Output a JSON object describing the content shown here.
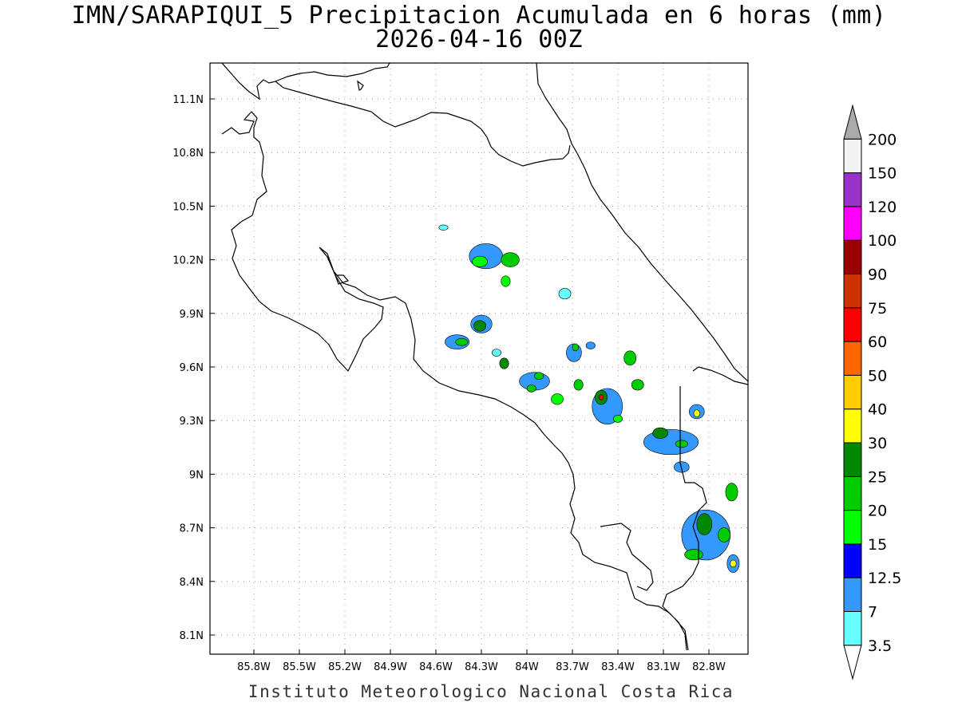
{
  "title": {
    "line1": "IMN/SARAPIQUI_5 Precipitacion Acumulada en 6 horas (mm)",
    "line2": "2026-04-16 00Z"
  },
  "map": {
    "lon_ticks": [
      {
        "value": -85.8,
        "label": "85.8W"
      },
      {
        "value": -85.5,
        "label": "85.5W"
      },
      {
        "value": -85.2,
        "label": "85.2W"
      },
      {
        "value": -84.9,
        "label": "84.9W"
      },
      {
        "value": -84.6,
        "label": "84.6W"
      },
      {
        "value": -84.3,
        "label": "84.3W"
      },
      {
        "value": -84.0,
        "label": "84W"
      },
      {
        "value": -83.7,
        "label": "83.7W"
      },
      {
        "value": -83.4,
        "label": "83.4W"
      },
      {
        "value": -83.1,
        "label": "83.1W"
      },
      {
        "value": -82.8,
        "label": "82.8W"
      }
    ],
    "lat_ticks": [
      {
        "value": 11.1,
        "label": "11.1N"
      },
      {
        "value": 10.8,
        "label": "10.8N"
      },
      {
        "value": 10.5,
        "label": "10.5N"
      },
      {
        "value": 10.2,
        "label": "10.2N"
      },
      {
        "value": 9.9,
        "label": "9.9N"
      },
      {
        "value": 9.6,
        "label": "9.6N"
      },
      {
        "value": 9.3,
        "label": "9.3N"
      },
      {
        "value": 9.0,
        "label": "9N"
      },
      {
        "value": 8.7,
        "label": "8.7N"
      },
      {
        "value": 8.4,
        "label": "8.4N"
      },
      {
        "value": 8.1,
        "label": "8.1N"
      }
    ]
  },
  "legend": {
    "bins": [
      {
        "label": "3.5",
        "color": "#66ffff"
      },
      {
        "label": "7",
        "color": "#3399ff"
      },
      {
        "label": "12.5",
        "color": "#0000ff"
      },
      {
        "label": "15",
        "color": "#00ff00"
      },
      {
        "label": "20",
        "color": "#00cc00"
      },
      {
        "label": "25",
        "color": "#008800"
      },
      {
        "label": "30",
        "color": "#ffff00"
      },
      {
        "label": "40",
        "color": "#ffcc00"
      },
      {
        "label": "50",
        "color": "#ff6600"
      },
      {
        "label": "60",
        "color": "#ff0000"
      },
      {
        "label": "75",
        "color": "#cc3300"
      },
      {
        "label": "90",
        "color": "#990000"
      },
      {
        "label": "100",
        "color": "#ff00ff"
      },
      {
        "label": "120",
        "color": "#9933cc"
      },
      {
        "label": "150",
        "color": "#f2f2f2"
      },
      {
        "label": "200",
        "color": "#aaaaaa"
      }
    ]
  },
  "precipitation": [
    {
      "lon": -84.27,
      "lat": 10.22,
      "rx": 0.11,
      "ry": 0.07,
      "level": 1
    },
    {
      "lon": -84.31,
      "lat": 10.19,
      "rx": 0.05,
      "ry": 0.03,
      "level": 3
    },
    {
      "lon": -84.11,
      "lat": 10.2,
      "rx": 0.06,
      "ry": 0.04,
      "level": 4
    },
    {
      "lon": -84.14,
      "lat": 10.08,
      "rx": 0.03,
      "ry": 0.03,
      "level": 3
    },
    {
      "lon": -84.3,
      "lat": 9.84,
      "rx": 0.07,
      "ry": 0.05,
      "level": 1
    },
    {
      "lon": -84.31,
      "lat": 9.83,
      "rx": 0.04,
      "ry": 0.03,
      "level": 5
    },
    {
      "lon": -84.46,
      "lat": 9.74,
      "rx": 0.08,
      "ry": 0.04,
      "level": 1
    },
    {
      "lon": -84.43,
      "lat": 9.74,
      "rx": 0.04,
      "ry": 0.02,
      "level": 4
    },
    {
      "lon": -84.15,
      "lat": 9.62,
      "rx": 0.03,
      "ry": 0.03,
      "level": 5
    },
    {
      "lon": -83.95,
      "lat": 9.52,
      "rx": 0.1,
      "ry": 0.05,
      "level": 1
    },
    {
      "lon": -83.92,
      "lat": 9.55,
      "rx": 0.03,
      "ry": 0.02,
      "level": 4
    },
    {
      "lon": -83.97,
      "lat": 9.48,
      "rx": 0.03,
      "ry": 0.02,
      "level": 4
    },
    {
      "lon": -83.8,
      "lat": 9.42,
      "rx": 0.04,
      "ry": 0.03,
      "level": 3
    },
    {
      "lon": -83.69,
      "lat": 9.68,
      "rx": 0.05,
      "ry": 0.05,
      "level": 1
    },
    {
      "lon": -83.68,
      "lat": 9.71,
      "rx": 0.02,
      "ry": 0.02,
      "level": 4
    },
    {
      "lon": -83.66,
      "lat": 9.5,
      "rx": 0.03,
      "ry": 0.03,
      "level": 4
    },
    {
      "lon": -83.47,
      "lat": 9.38,
      "rx": 0.1,
      "ry": 0.1,
      "level": 1
    },
    {
      "lon": -83.51,
      "lat": 9.43,
      "rx": 0.04,
      "ry": 0.04,
      "level": 5
    },
    {
      "lon": -83.51,
      "lat": 9.43,
      "rx": 0.015,
      "ry": 0.015,
      "level": 9
    },
    {
      "lon": -83.4,
      "lat": 9.31,
      "rx": 0.03,
      "ry": 0.02,
      "level": 3
    },
    {
      "lon": -83.32,
      "lat": 9.65,
      "rx": 0.04,
      "ry": 0.04,
      "level": 4
    },
    {
      "lon": -83.27,
      "lat": 9.5,
      "rx": 0.04,
      "ry": 0.03,
      "level": 4
    },
    {
      "lon": -83.05,
      "lat": 9.18,
      "rx": 0.18,
      "ry": 0.07,
      "level": 1
    },
    {
      "lon": -83.12,
      "lat": 9.23,
      "rx": 0.05,
      "ry": 0.03,
      "level": 5
    },
    {
      "lon": -82.98,
      "lat": 9.17,
      "rx": 0.04,
      "ry": 0.02,
      "level": 4
    },
    {
      "lon": -82.88,
      "lat": 9.35,
      "rx": 0.05,
      "ry": 0.04,
      "level": 1
    },
    {
      "lon": -82.88,
      "lat": 9.34,
      "rx": 0.02,
      "ry": 0.02,
      "level": 6
    },
    {
      "lon": -82.82,
      "lat": 8.66,
      "rx": 0.16,
      "ry": 0.14,
      "level": 1
    },
    {
      "lon": -82.83,
      "lat": 8.72,
      "rx": 0.05,
      "ry": 0.06,
      "level": 5
    },
    {
      "lon": -82.9,
      "lat": 8.55,
      "rx": 0.06,
      "ry": 0.03,
      "level": 4
    },
    {
      "lon": -82.7,
      "lat": 8.66,
      "rx": 0.04,
      "ry": 0.04,
      "level": 4
    },
    {
      "lon": -82.65,
      "lat": 8.9,
      "rx": 0.04,
      "ry": 0.05,
      "level": 4
    },
    {
      "lon": -82.64,
      "lat": 8.5,
      "rx": 0.04,
      "ry": 0.05,
      "level": 1
    },
    {
      "lon": -82.64,
      "lat": 8.5,
      "rx": 0.02,
      "ry": 0.02,
      "level": 6
    },
    {
      "lon": -83.75,
      "lat": 10.01,
      "rx": 0.04,
      "ry": 0.03,
      "level": 0
    },
    {
      "lon": -84.55,
      "lat": 10.38,
      "rx": 0.03,
      "ry": 0.015,
      "level": 0
    },
    {
      "lon": -84.2,
      "lat": 9.68,
      "rx": 0.03,
      "ry": 0.02,
      "level": 0
    },
    {
      "lon": -83.58,
      "lat": 9.72,
      "rx": 0.03,
      "ry": 0.02,
      "level": 1
    },
    {
      "lon": -82.98,
      "lat": 9.04,
      "rx": 0.05,
      "ry": 0.03,
      "level": 1
    }
  ],
  "footer": {
    "credit": "Instituto Meteorologico Nacional Costa Rica"
  }
}
